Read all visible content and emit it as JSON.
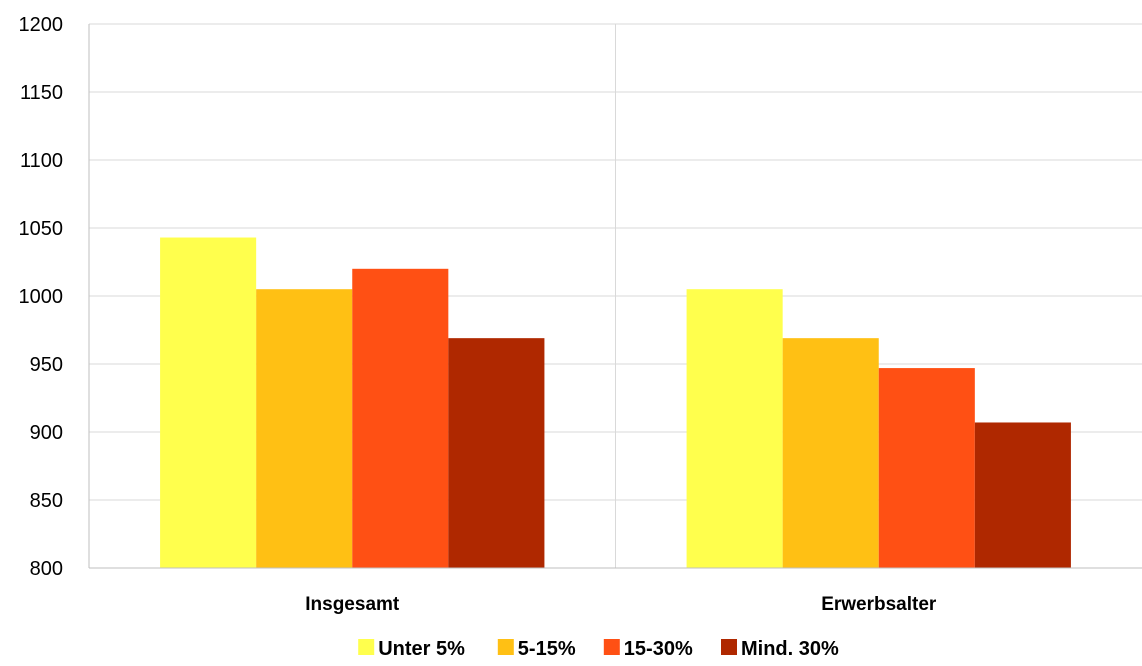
{
  "chart_data": {
    "type": "bar",
    "title": "",
    "xlabel": "",
    "ylabel": "",
    "ylim": [
      800,
      1200
    ],
    "yticks": [
      800,
      850,
      900,
      950,
      1000,
      1050,
      1100,
      1150,
      1200
    ],
    "grid": true,
    "legend_position": "bottom",
    "categories": [
      "Insgesamt",
      "Erwerbsalter"
    ],
    "series": [
      {
        "name": "Unter 5%",
        "color": "#FFFF4D",
        "values": [
          1043,
          1005
        ]
      },
      {
        "name": "5-15%",
        "color": "#FFC014",
        "values": [
          1005,
          969
        ]
      },
      {
        "name": "15-30%",
        "color": "#FF5014",
        "values": [
          1020,
          947
        ]
      },
      {
        "name": "Mind. 30%",
        "color": "#AF2800",
        "values": [
          969,
          907
        ]
      }
    ]
  }
}
